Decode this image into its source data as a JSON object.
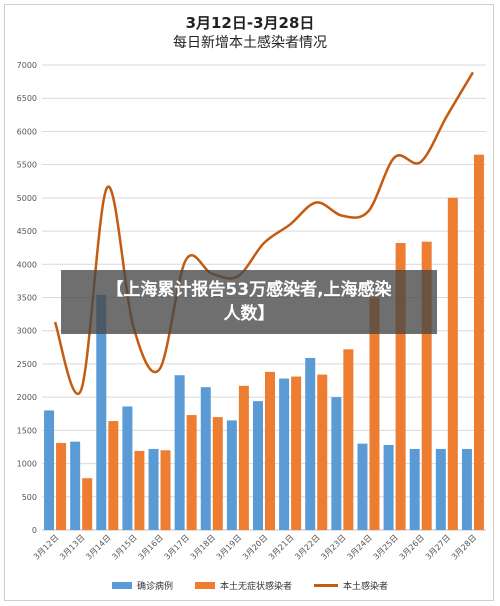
{
  "chart_data": {
    "type": "bar",
    "title": "3月12日-3月28日",
    "subtitle": "每日新增本土感染者情况",
    "categories": [
      "3月12日",
      "3月13日",
      "3月14日",
      "3月15日",
      "3月16日",
      "3月17日",
      "3月18日",
      "3月19日",
      "3月20日",
      "3月21日",
      "3月22日",
      "3月23日",
      "3月24日",
      "3月25日",
      "3月26日",
      "3月27日",
      "3月28日"
    ],
    "ylim": [
      0,
      7000
    ],
    "yticks": [
      "0",
      "500",
      "1000",
      "1500",
      "2000",
      "2500",
      "3000",
      "3500",
      "4000",
      "4500",
      "5000",
      "5500",
      "6000",
      "6500",
      "7000"
    ],
    "grid": true,
    "legend_position": "bottom",
    "series": [
      {
        "name": "确诊病例",
        "type": "bar",
        "color": "#5b9bd5",
        "values": [
          1800,
          1330,
          3540,
          1860,
          1220,
          2330,
          2150,
          1650,
          1940,
          2280,
          2590,
          2000,
          1300,
          1280,
          1220,
          1220,
          1220
        ]
      },
      {
        "name": "本土无症状感染者",
        "type": "bar",
        "color": "#ed7d31",
        "values": [
          1310,
          780,
          1640,
          1190,
          1200,
          1730,
          1700,
          2170,
          2380,
          2310,
          2340,
          2720,
          3500,
          4320,
          4340,
          5000,
          5650
        ]
      },
      {
        "name": "本土感染者",
        "type": "line",
        "color": "#c55a11",
        "values": [
          3130,
          2110,
          5160,
          3060,
          2420,
          4060,
          3860,
          3820,
          4320,
          4600,
          4930,
          4730,
          4800,
          5610,
          5540,
          6230,
          6890
        ]
      }
    ]
  },
  "overlay": {
    "line1": "【上海累计报告53万感染者,上海感染",
    "line2": "人数】"
  }
}
